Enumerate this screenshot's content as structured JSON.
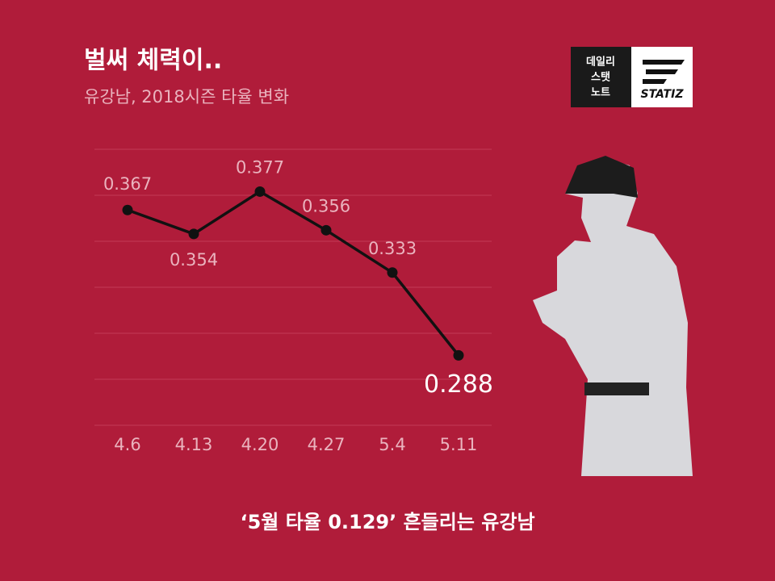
{
  "header": {
    "title": "벌써 체력이..",
    "subtitle": "유강남, 2018시즌 타율 변화"
  },
  "logo": {
    "lines": [
      "데일리",
      "스탯",
      "노트"
    ],
    "brand": "STATIZ"
  },
  "chart_data": {
    "type": "line",
    "categories": [
      "4.6",
      "4.13",
      "4.20",
      "4.27",
      "5.4",
      "5.11"
    ],
    "series": [
      {
        "color": "#111111",
        "values": [
          0.367,
          0.354,
          0.377,
          0.356,
          0.333,
          0.288
        ]
      }
    ],
    "ylim": [
      0.25,
      0.4
    ],
    "yticks": [
      0.25,
      0.275,
      0.3,
      0.325,
      0.35,
      0.375,
      0.4
    ],
    "grid": true
  },
  "footer": {
    "caption": "‘5월 타율 0.129’  흔들리는 유강남"
  }
}
